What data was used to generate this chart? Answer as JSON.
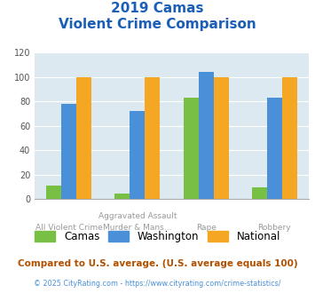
{
  "title_line1": "2019 Camas",
  "title_line2": "Violent Crime Comparison",
  "cat_labels_top": [
    "",
    "Aggravated Assault",
    "",
    ""
  ],
  "cat_labels_bot": [
    "All Violent Crime",
    "Murder & Mans...",
    "Rape",
    "Robbery"
  ],
  "series": {
    "Camas": [
      11,
      5,
      83,
      10
    ],
    "Washington": [
      78,
      72,
      104,
      83
    ],
    "National": [
      100,
      100,
      100,
      100
    ]
  },
  "colors": {
    "Camas": "#77c043",
    "Washington": "#4a90d9",
    "National": "#f5a623"
  },
  "ylim": [
    0,
    120
  ],
  "yticks": [
    0,
    20,
    40,
    60,
    80,
    100,
    120
  ],
  "title_color": "#1a5eb8",
  "plot_bg": "#dce9f0",
  "grid_color": "#ffffff",
  "footnote": "Compared to U.S. average. (U.S. average equals 100)",
  "copyright": "© 2025 CityRating.com - https://www.cityrating.com/crime-statistics/",
  "footnote_color": "#b05000",
  "copyright_color": "#4a90d9",
  "bar_width": 0.22
}
